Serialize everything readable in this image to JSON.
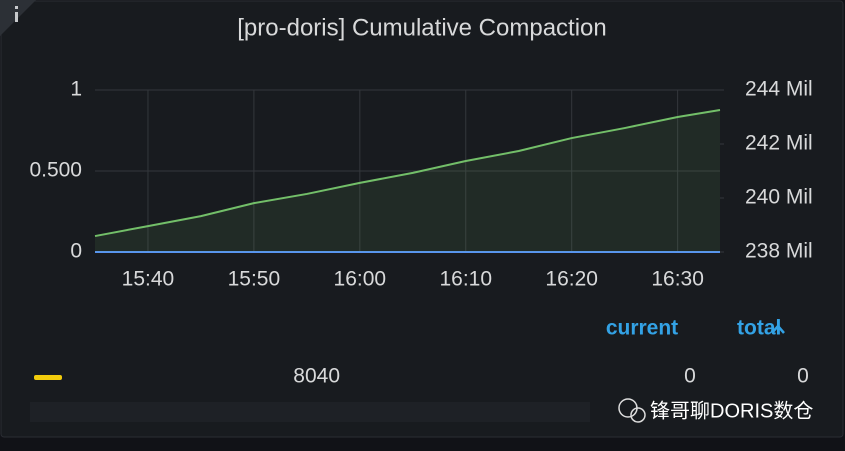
{
  "chart_data": {
    "type": "line",
    "title": "[pro-doris] Cumulative Compaction",
    "x": [
      "15:35",
      "15:40",
      "15:45",
      "15:50",
      "15:55",
      "16:00",
      "16:05",
      "16:10",
      "16:15",
      "16:20",
      "16:25",
      "16:30",
      "16:34"
    ],
    "xlim": [
      "15:35",
      "16:34"
    ],
    "xticks": [
      "15:40",
      "15:50",
      "16:00",
      "16:10",
      "16:20",
      "16:30"
    ],
    "ylim": [
      0,
      1
    ],
    "yticks": [
      0,
      {
        "value": 0.5,
        "label": "0.500"
      },
      1
    ],
    "y2lim": [
      238000000,
      244000000
    ],
    "y2ticks": [
      {
        "value": 238000000,
        "label": "238 Mil"
      },
      {
        "value": 240000000,
        "label": "240 Mil"
      },
      {
        "value": 242000000,
        "label": "242 Mil"
      },
      {
        "value": 244000000,
        "label": "244 Mil"
      }
    ],
    "grid": true,
    "series": [
      {
        "name": "8040",
        "color": "#f2cc0c",
        "values": [
          0,
          0,
          0,
          0,
          0,
          0,
          0,
          0,
          0,
          0,
          0,
          0,
          0
        ],
        "current": 0,
        "total": 0
      },
      {
        "color": "#5794f2",
        "values": [
          0,
          0,
          0,
          0,
          0,
          0,
          0,
          0,
          0,
          0,
          0,
          0,
          0
        ]
      },
      {
        "color": "#73bf69",
        "axis": "y2",
        "values": [
          238590000,
          238960000,
          239330000,
          239810000,
          240150000,
          240560000,
          240930000,
          241370000,
          241740000,
          242220000,
          242590000,
          243000000,
          243260000
        ]
      }
    ],
    "legend_columns": [
      "current",
      "total"
    ]
  },
  "watermark": "锋哥聊DORIS数仓"
}
